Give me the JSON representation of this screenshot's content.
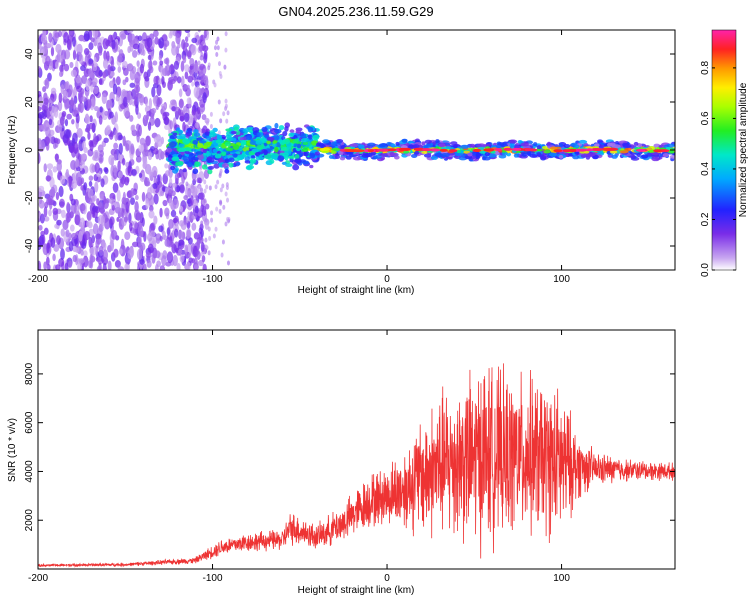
{
  "figure_title": "GN04.2025.236.11.59.G29",
  "chart_data": [
    {
      "type": "heatmap",
      "name": "spectrogram",
      "xlabel": "Height of straight line (km)",
      "ylabel": "Frequency (Hz)",
      "xlim": [
        -200,
        165
      ],
      "ylim": [
        -50,
        50
      ],
      "xticks": [
        -200,
        -100,
        0,
        100
      ],
      "yticks": [
        -40,
        -20,
        0,
        20,
        40
      ],
      "colorbar": {
        "label": "Normalized spectral amplitude",
        "range": [
          0,
          0.95
        ],
        "ticks": [
          0.0,
          0.2,
          0.4,
          0.6,
          0.8
        ],
        "tick_labels": [
          "0.0",
          "0.2",
          "0.4",
          "0.6",
          "0.8"
        ]
      },
      "description_regions": [
        {
          "x_range": [
            -200,
            -115
          ],
          "pattern": "broadband noise",
          "amplitude": 0.15
        },
        {
          "x_range": [
            -125,
            -40
          ],
          "pattern": "scattered signal near 0 Hz",
          "center_hz": 2,
          "spread_hz": 6,
          "amplitude": 0.4
        },
        {
          "x_range": [
            -40,
            165
          ],
          "pattern": "narrow band near 0 Hz",
          "center_hz": 0,
          "spread_hz": 3,
          "amplitude": 0.85
        }
      ]
    },
    {
      "type": "line",
      "name": "snr",
      "xlabel": "Height of straight line (km)",
      "ylabel": "SNR (10 * v/v)",
      "xlim": [
        -200,
        165
      ],
      "ylim": [
        0,
        9800
      ],
      "xticks": [
        -200,
        -100,
        0,
        100
      ],
      "yticks": [
        2000,
        4000,
        6000,
        8000
      ],
      "color": "#ee3333",
      "envelope": {
        "x": [
          -200,
          -150,
          -110,
          -95,
          -80,
          -60,
          -55,
          -40,
          -25,
          -10,
          0,
          10,
          20,
          30,
          40,
          50,
          55,
          60,
          70,
          80,
          90,
          100,
          110,
          120,
          140,
          165
        ],
        "mean": [
          150,
          180,
          350,
          900,
          1100,
          1200,
          1700,
          1300,
          1900,
          2800,
          3000,
          3300,
          3800,
          4200,
          4500,
          4500,
          4800,
          4700,
          4600,
          4700,
          4500,
          4300,
          4200,
          4100,
          4050,
          4000
        ],
        "amp": [
          60,
          80,
          150,
          400,
          450,
          500,
          800,
          600,
          900,
          1300,
          1400,
          2000,
          2800,
          3500,
          3800,
          4200,
          4500,
          4200,
          3800,
          3800,
          3700,
          3500,
          1500,
          800,
          500,
          400
        ]
      }
    }
  ]
}
